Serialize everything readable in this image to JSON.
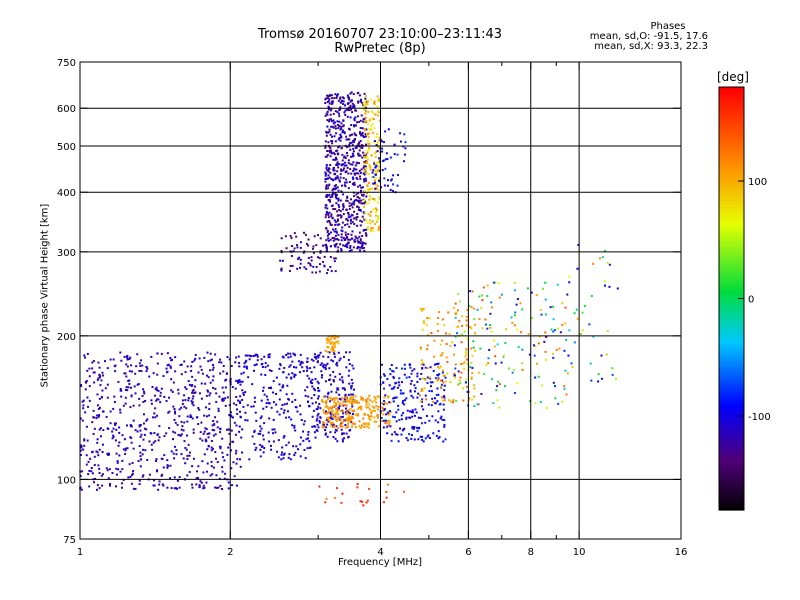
{
  "title": {
    "line1": "Tromsø 20160707 23:10:00–23:11:43",
    "line2": "RwPretec (8p)"
  },
  "phase_stats": {
    "heading": "Phases",
    "line1": "mean, sd,O: -91.5, 17.6",
    "line2": "mean, sd,X: 93.3, 22.3"
  },
  "chart_data": {
    "type": "scatter",
    "xlabel": "Frequency [MHz]",
    "ylabel": "Stationary phase Virtual Height [km]",
    "xscale": "log",
    "yscale": "log",
    "xlim": [
      1,
      16
    ],
    "ylim": [
      75,
      750
    ],
    "x_ticks": [
      1,
      2,
      4,
      6,
      8,
      10,
      16
    ],
    "x_tick_labels": [
      "1",
      "2",
      "4",
      "6",
      "8",
      "10",
      "16"
    ],
    "x_grid": [
      2,
      4,
      6,
      8,
      10
    ],
    "x_minor_ticks": [
      3,
      5,
      7,
      9
    ],
    "y_ticks": [
      75,
      100,
      200,
      300,
      400,
      500,
      600,
      750
    ],
    "y_tick_labels": [
      "75",
      "100",
      "200",
      "300",
      "400",
      "500",
      "600",
      "750"
    ],
    "y_grid": [
      100,
      200,
      300,
      400,
      500,
      600
    ],
    "colorbar": {
      "label": "[deg]",
      "range": [
        -180,
        180
      ],
      "ticks": [
        100,
        0,
        -100
      ],
      "tick_labels": [
        "100",
        "0",
        "-100"
      ]
    },
    "clusters": [
      {
        "x": [
          1.0,
          2.1
        ],
        "y": [
          95,
          185
        ],
        "phase": [
          -130,
          -100
        ],
        "count": 700
      },
      {
        "x": [
          2.05,
          2.9
        ],
        "y": [
          110,
          185
        ],
        "phase": [
          -120,
          -90
        ],
        "count": 260
      },
      {
        "x": [
          2.9,
          3.55
        ],
        "y": [
          120,
          185
        ],
        "phase": [
          -120,
          -95
        ],
        "count": 220
      },
      {
        "x": [
          2.5,
          3.3
        ],
        "y": [
          270,
          330
        ],
        "phase": [
          -145,
          -110
        ],
        "count": 90
      },
      {
        "x": [
          3.1,
          3.75
        ],
        "y": [
          300,
          650
        ],
        "phase": [
          -145,
          -95
        ],
        "count": 700
      },
      {
        "x": [
          3.7,
          4.0
        ],
        "y": [
          330,
          640
        ],
        "phase": [
          60,
          120
        ],
        "count": 180
      },
      {
        "x": [
          3.85,
          4.5
        ],
        "y": [
          400,
          560
        ],
        "phase": [
          -120,
          -70
        ],
        "count": 60
      },
      {
        "x": [
          3.05,
          4.2
        ],
        "y": [
          128,
          150
        ],
        "phase": [
          95,
          125
        ],
        "count": 260
      },
      {
        "x": [
          3.1,
          3.3
        ],
        "y": [
          185,
          200
        ],
        "phase": [
          90,
          120
        ],
        "count": 40
      },
      {
        "x": [
          4.0,
          5.4
        ],
        "y": [
          120,
          175
        ],
        "phase": [
          -115,
          -75
        ],
        "count": 220
      },
      {
        "x": [
          4.8,
          6.2
        ],
        "y": [
          145,
          230
        ],
        "phase": [
          80,
          140
        ],
        "count": 120
      },
      {
        "x": [
          5.6,
          9.5
        ],
        "y": [
          140,
          260
        ],
        "phase": [
          -130,
          150
        ],
        "count": 180
      },
      {
        "x": [
          9.5,
          12.0
        ],
        "y": [
          160,
          320
        ],
        "phase": [
          -120,
          120
        ],
        "count": 40
      },
      {
        "x": [
          3.0,
          4.5
        ],
        "y": [
          88,
          98
        ],
        "phase": [
          120,
          170
        ],
        "count": 20
      }
    ]
  }
}
